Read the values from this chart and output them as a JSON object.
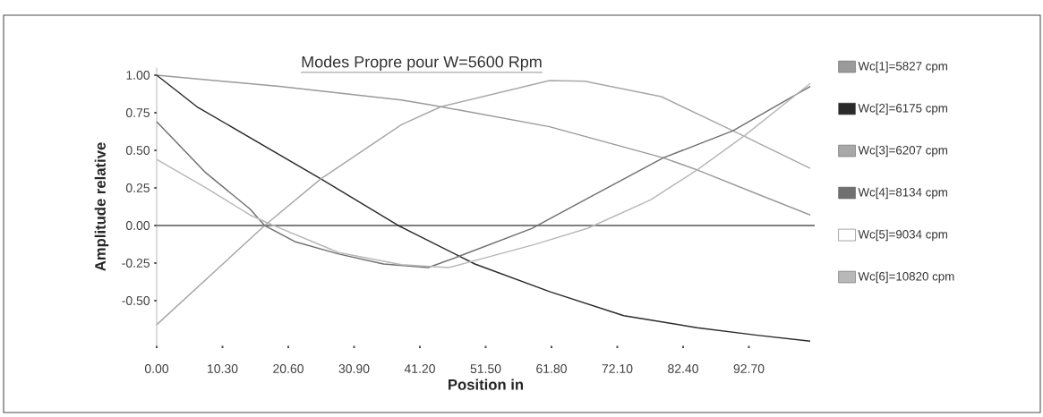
{
  "chart_data": {
    "type": "line",
    "title": "Modes Propre pour W=5600 Rpm",
    "xlabel": "Position in",
    "ylabel": "Amplitude relative",
    "series": [
      {
        "name": "Wc[1]=5827 cpm",
        "color": "#9a9a9a",
        "x": [
          0,
          19.2,
          38.3,
          42.5,
          47.6,
          61.5,
          79.3,
          84.6,
          94.0,
          102.3
        ],
        "values": [
          1.0,
          0.925,
          0.835,
          0.805,
          0.766,
          0.657,
          0.45,
          0.37,
          0.21,
          0.07
        ]
      },
      {
        "name": "Wc[2]=6175 cpm",
        "color": "#2a2a2a",
        "x": [
          0,
          6.3,
          25.7,
          37.8,
          49.8,
          61.5,
          73.1,
          84.6,
          94.0,
          102.3
        ],
        "values": [
          1.0,
          0.79,
          0.31,
          0.0,
          -0.256,
          -0.44,
          -0.6,
          -0.68,
          -0.73,
          -0.77
        ]
      },
      {
        "name": "Wc[3]=6207 cpm",
        "color": "#a8a8a8",
        "x": [
          0,
          16.9,
          25.7,
          38.3,
          44.5,
          61.5,
          67.0,
          79.0,
          90.2,
          102.3
        ],
        "values": [
          -0.66,
          0.0,
          0.31,
          0.67,
          0.79,
          0.964,
          0.96,
          0.857,
          0.63,
          0.38
        ]
      },
      {
        "name": "Wc[4]=8134 cpm",
        "color": "#707070",
        "x": [
          0,
          7.7,
          14.6,
          16.9,
          21.6,
          28.5,
          35.5,
          42.5,
          47.0,
          58.7,
          66.1,
          79.3,
          90.2,
          102.3
        ],
        "values": [
          0.69,
          0.35,
          0.11,
          0.0,
          -0.107,
          -0.19,
          -0.256,
          -0.28,
          -0.21,
          -0.02,
          0.15,
          0.45,
          0.63,
          0.925
        ]
      },
      {
        "name": "Wc[5]=9034 cpm",
        "color": "#ffffff",
        "values": [
          null
        ]
      },
      {
        "name": "Wc[6]=10820 cpm",
        "color": "#b8b8b8",
        "x": [
          0,
          7.7,
          14.6,
          18.3,
          28.5,
          38.3,
          45.7,
          59.2,
          67.5,
          77.3,
          84.6,
          92.1,
          102.3
        ],
        "values": [
          0.44,
          0.25,
          0.07,
          0.0,
          -0.18,
          -0.26,
          -0.28,
          -0.126,
          -0.018,
          0.17,
          0.37,
          0.6,
          0.945
        ]
      }
    ],
    "xlim": [
      0,
      103
    ],
    "ylim": [
      -0.8,
      1.05
    ],
    "xticks": [
      {
        "value": 0,
        "label": "0.00"
      },
      {
        "value": 10.3,
        "label": "10.30"
      },
      {
        "value": 20.6,
        "label": "20.60"
      },
      {
        "value": 30.9,
        "label": "30.90"
      },
      {
        "value": 41.2,
        "label": "41.20"
      },
      {
        "value": 51.5,
        "label": "51.50"
      },
      {
        "value": 61.8,
        "label": "61.80"
      },
      {
        "value": 72.1,
        "label": "72.10"
      },
      {
        "value": 82.4,
        "label": "82.40"
      },
      {
        "value": 92.7,
        "label": "92.70"
      }
    ],
    "yticks": [
      {
        "value": -0.5,
        "label": "-0.50"
      },
      {
        "value": -0.25,
        "label": "-0.25"
      },
      {
        "value": 0,
        "label": "0.00"
      },
      {
        "value": 0.25,
        "label": "0.25"
      },
      {
        "value": 0.5,
        "label": "0.50"
      },
      {
        "value": 0.75,
        "label": "0.75"
      },
      {
        "value": 1,
        "label": "1.00"
      }
    ],
    "ref_lines": [
      {
        "axis": "y",
        "value": 0,
        "color": "#555555"
      }
    ],
    "grid": false,
    "legend": "right",
    "marker": "none",
    "line_style": "solid"
  }
}
